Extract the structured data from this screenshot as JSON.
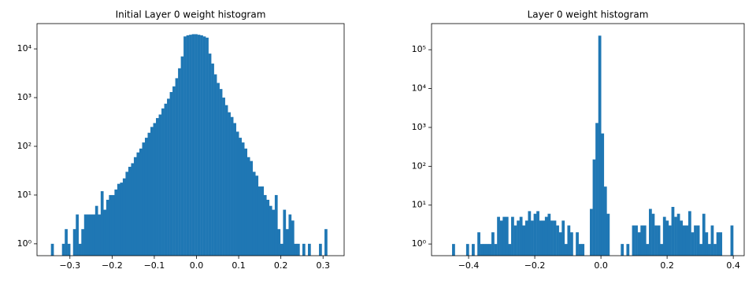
{
  "chart_data": [
    {
      "type": "histogram",
      "title": "Initial Layer 0 weight histogram",
      "color": "#1f77b4",
      "log_y": true,
      "bins": [
        -0.345,
        -0.33845,
        -0.3319,
        -0.32535,
        -0.3188,
        -0.31225,
        -0.3057,
        -0.29915,
        -0.2926,
        -0.28605,
        -0.2795,
        -0.27295,
        -0.2664,
        -0.25985,
        -0.2533,
        -0.24675,
        -0.2402,
        -0.23365,
        -0.2271,
        -0.22055,
        -0.214,
        -0.20745,
        -0.2009,
        -0.19435,
        -0.1878,
        -0.18125,
        -0.1747,
        -0.16815,
        -0.1616,
        -0.15505,
        -0.1485,
        -0.14195,
        -0.1354,
        -0.12885,
        -0.1223,
        -0.11575,
        -0.1092,
        -0.10265,
        -0.0961,
        -0.08955,
        -0.083,
        -0.07645,
        -0.0699,
        -0.06335,
        -0.0568,
        -0.05025,
        -0.0437,
        -0.03715,
        -0.0306,
        -0.02405,
        -0.0175,
        -0.01095,
        -0.0044,
        0.00215,
        0.0087,
        0.01525,
        0.0218,
        0.02835,
        0.0349,
        0.04145,
        0.048,
        0.05455,
        0.0611,
        0.06765,
        0.0742,
        0.08075,
        0.0873,
        0.09385,
        0.1004,
        0.10695,
        0.1135,
        0.12005,
        0.1266,
        0.13315,
        0.1397,
        0.14625,
        0.1528,
        0.15935,
        0.1659,
        0.17245,
        0.179,
        0.18555,
        0.1921,
        0.19865,
        0.2052,
        0.21175,
        0.2183,
        0.22485,
        0.2314,
        0.23795,
        0.2445,
        0.25105,
        0.2576,
        0.26415,
        0.2707,
        0.27725,
        0.2838,
        0.29035,
        0.2969,
        0.30345,
        0.31
      ],
      "values": [
        1,
        0,
        0,
        0,
        1,
        2,
        1,
        0,
        2,
        4,
        1,
        2,
        4,
        4,
        4,
        4,
        6,
        4,
        12,
        5,
        8,
        10,
        10,
        13,
        17,
        18,
        22,
        30,
        38,
        45,
        60,
        75,
        90,
        120,
        150,
        190,
        250,
        300,
        380,
        450,
        600,
        750,
        950,
        1300,
        1700,
        2500,
        4000,
        7000,
        18000,
        19000,
        19500,
        20000,
        20000,
        19500,
        19000,
        18000,
        17000,
        8000,
        5000,
        3000,
        2000,
        1500,
        1000,
        700,
        500,
        400,
        300,
        200,
        150,
        120,
        90,
        60,
        50,
        30,
        25,
        15,
        15,
        10,
        8,
        6,
        5,
        10,
        2,
        1,
        5,
        2,
        4,
        3,
        1,
        1,
        0,
        1,
        0,
        1,
        0,
        0,
        0,
        1,
        0,
        2
      ],
      "xlim": [
        -0.378,
        0.35
      ],
      "ylim": [
        0.57,
        33000
      ],
      "xticks": [
        {
          "value": -0.3,
          "label": "−0.3"
        },
        {
          "value": -0.2,
          "label": "−0.2"
        },
        {
          "value": -0.1,
          "label": "−0.1"
        },
        {
          "value": 0,
          "label": "0.0"
        },
        0.1,
        0.2,
        0.3
      ],
      "yticks": [
        {
          "value": 1,
          "label": "10⁰"
        },
        {
          "value": 10,
          "label": "10¹"
        },
        {
          "value": 100,
          "label": "10²"
        },
        {
          "value": 1000,
          "label": "10³"
        },
        {
          "value": 10000,
          "label": "10⁴"
        }
      ]
    },
    {
      "type": "histogram",
      "title": "Layer 0 weight histogram",
      "color": "#1f77b4",
      "log_y": true,
      "bins": [
        -0.45,
        -0.4415,
        -0.433,
        -0.4245,
        -0.416,
        -0.4075,
        -0.399,
        -0.3905,
        -0.382,
        -0.3735,
        -0.365,
        -0.3565,
        -0.348,
        -0.3395,
        -0.331,
        -0.3225,
        -0.314,
        -0.3055,
        -0.297,
        -0.2885,
        -0.28,
        -0.2715,
        -0.263,
        -0.2545,
        -0.246,
        -0.2375,
        -0.229,
        -0.2205,
        -0.212,
        -0.2035,
        -0.195,
        -0.1865,
        -0.178,
        -0.1695,
        -0.161,
        -0.1525,
        -0.144,
        -0.1355,
        -0.127,
        -0.1185,
        -0.11,
        -0.1015,
        -0.093,
        -0.0845,
        -0.076,
        -0.0675,
        -0.059,
        -0.0505,
        -0.042,
        -0.0335,
        -0.025,
        -0.0165,
        -0.008,
        0.0005,
        0.009,
        0.0175,
        0.026,
        0.0345,
        0.043,
        0.0515,
        0.06,
        0.0685,
        0.077,
        0.0855,
        0.094,
        0.1025,
        0.111,
        0.1195,
        0.128,
        0.1365,
        0.145,
        0.1535,
        0.162,
        0.1705,
        0.179,
        0.1875,
        0.196,
        0.2045,
        0.213,
        0.2215,
        0.23,
        0.2385,
        0.247,
        0.2555,
        0.264,
        0.2725,
        0.281,
        0.2895,
        0.298,
        0.3065,
        0.315,
        0.3235,
        0.332,
        0.3405,
        0.349,
        0.3575,
        0.366,
        0.3745,
        0.383,
        0.3915,
        0.4
      ],
      "values": [
        1,
        0,
        0,
        0,
        0,
        1,
        0,
        1,
        0,
        2,
        1,
        1,
        1,
        1,
        2,
        1,
        5,
        4,
        5,
        5,
        1,
        5,
        3,
        4,
        5,
        3,
        4,
        7,
        4,
        6,
        7,
        4,
        4,
        5,
        6,
        4,
        4,
        3,
        2,
        4,
        1,
        3,
        2,
        0,
        2,
        1,
        1,
        0,
        0,
        8,
        150,
        1300,
        230000,
        700,
        30,
        6,
        0,
        0,
        0,
        0,
        1,
        0,
        1,
        0,
        3,
        3,
        2,
        3,
        3,
        1,
        8,
        6,
        3,
        3,
        1,
        5,
        4,
        3,
        9,
        5,
        6,
        4,
        3,
        3,
        7,
        2,
        3,
        3,
        1,
        6,
        2,
        1,
        3,
        1,
        2,
        2,
        0,
        0,
        0,
        3
      ],
      "xlim": [
        -0.512,
        0.433
      ],
      "ylim": [
        0.5,
        470000
      ],
      "xticks": [
        {
          "value": -0.4,
          "label": "−0.4"
        },
        {
          "value": -0.2,
          "label": "−0.2"
        },
        {
          "value": 0,
          "label": "0.0"
        },
        0.2,
        0.4
      ],
      "yticks": [
        {
          "value": 1,
          "label": "10⁰"
        },
        {
          "value": 10,
          "label": "10¹"
        },
        {
          "value": 100,
          "label": "10²"
        },
        {
          "value": 1000,
          "label": "10³"
        },
        {
          "value": 10000,
          "label": "10⁴"
        },
        {
          "value": 100000,
          "label": "10⁵"
        }
      ]
    }
  ]
}
